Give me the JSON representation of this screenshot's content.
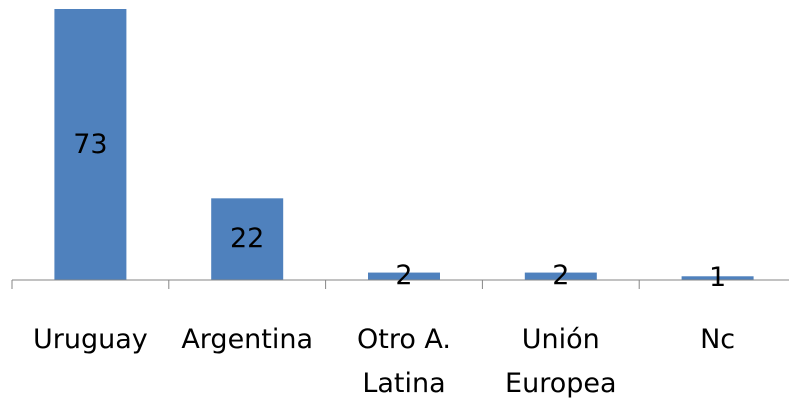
{
  "chart_data": {
    "type": "bar",
    "categories": [
      "Uruguay",
      "Argentina",
      "Otro A. Latina",
      "Unión Europea",
      "Nc"
    ],
    "values": [
      73,
      22,
      2,
      2,
      1
    ],
    "color": "#4f81bd"
  }
}
